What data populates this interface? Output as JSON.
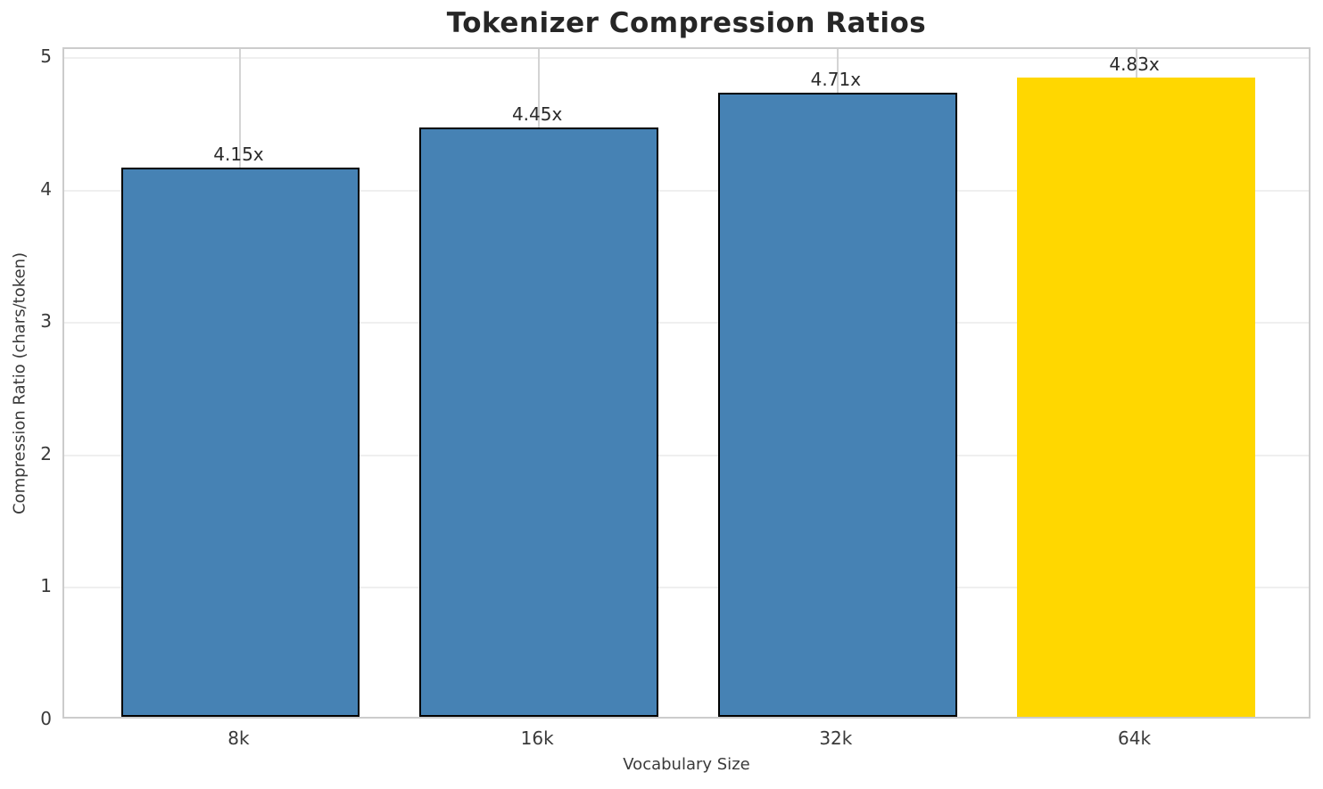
{
  "chart_data": {
    "type": "bar",
    "title": "Tokenizer Compression Ratios",
    "xlabel": "Vocabulary Size",
    "ylabel": "Compression Ratio (chars/token)",
    "categories": [
      "8k",
      "16k",
      "32k",
      "64k"
    ],
    "values": [
      4.15,
      4.45,
      4.71,
      4.83
    ],
    "bar_labels": [
      "4.15x",
      "4.45x",
      "4.71x",
      "4.83x"
    ],
    "bar_colors": [
      "#4682B4",
      "#4682B4",
      "#4682B4",
      "#FFD700"
    ],
    "bar_edge_colors": [
      "#000000",
      "#000000",
      "#000000",
      "#FFD700"
    ],
    "yticks": [
      "0",
      "1",
      "2",
      "3",
      "4",
      "5"
    ],
    "ytick_values": [
      0,
      1,
      2,
      3,
      4,
      5
    ],
    "ylim": [
      0,
      5.07
    ],
    "grid": true,
    "legend_position": "none",
    "colors": {
      "default_bar": "#4682B4",
      "highlight_bar": "#FFD700",
      "spine": "#cccccc",
      "hgrid": "#efefef",
      "vgrid": "#d4d4d4",
      "title_text": "#262626",
      "tick_text": "#3a3a3a"
    }
  }
}
